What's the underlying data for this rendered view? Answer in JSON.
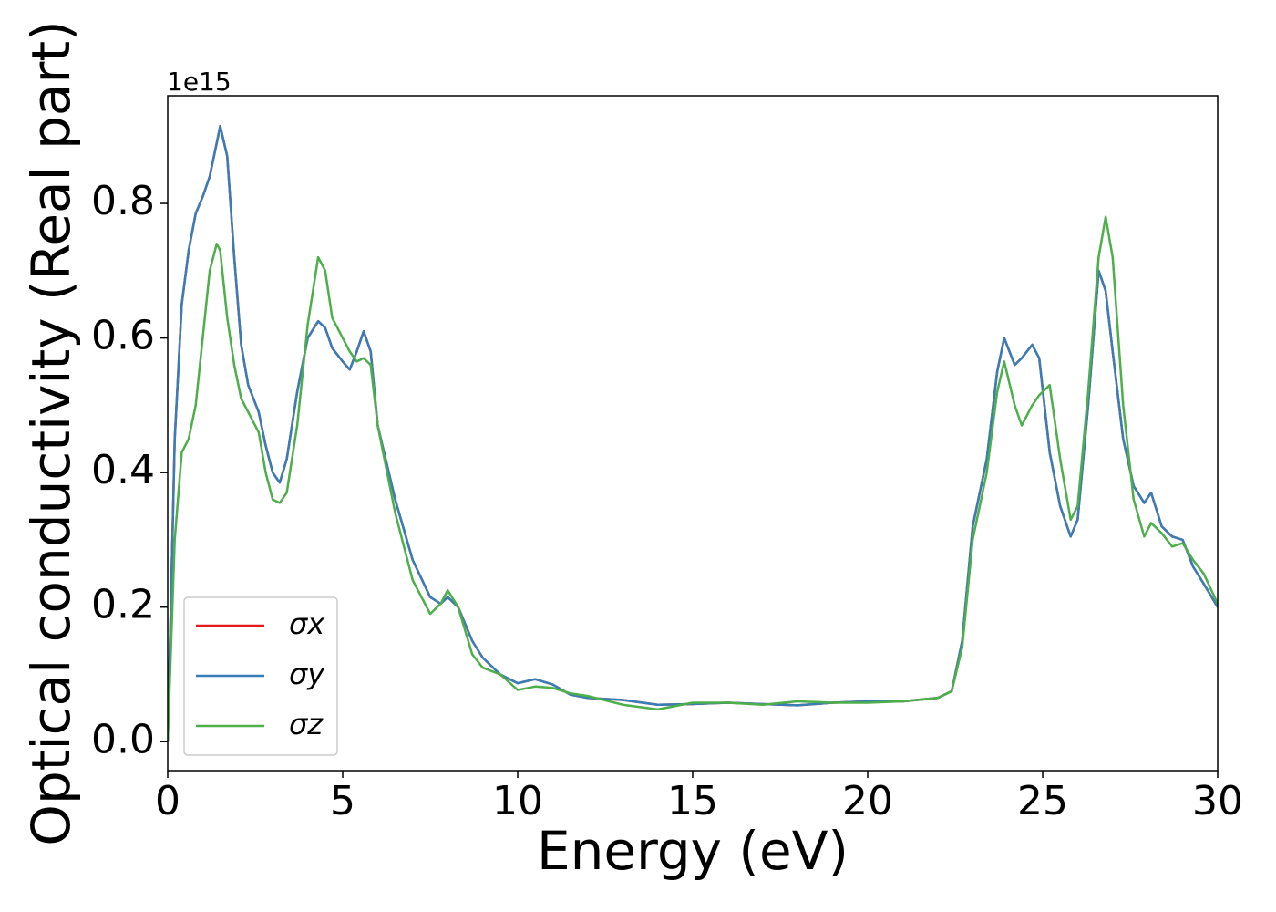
{
  "chart_data": {
    "type": "line",
    "xlabel": "Energy (eV)",
    "ylabel": "Optical conductivity (Real part)",
    "annotation": "1e15",
    "x": [
      0,
      0.2,
      0.4,
      0.6,
      0.8,
      1.0,
      1.2,
      1.4,
      1.5,
      1.7,
      1.9,
      2.1,
      2.3,
      2.6,
      2.8,
      3.0,
      3.2,
      3.4,
      3.7,
      4.0,
      4.3,
      4.5,
      4.7,
      5.0,
      5.2,
      5.4,
      5.6,
      5.8,
      6.0,
      6.5,
      7.0,
      7.5,
      7.8,
      8.0,
      8.3,
      8.7,
      9.0,
      9.5,
      10,
      10.5,
      11,
      11.5,
      12,
      13,
      14,
      15,
      16,
      17,
      18,
      19,
      20,
      21,
      22,
      22.4,
      22.7,
      23.0,
      23.4,
      23.7,
      23.9,
      24.2,
      24.4,
      24.7,
      24.9,
      25.2,
      25.5,
      25.8,
      26.0,
      26.3,
      26.6,
      26.8,
      27.0,
      27.3,
      27.6,
      27.9,
      28.1,
      28.4,
      28.7,
      29.0,
      29.3,
      29.6,
      30
    ],
    "series": [
      {
        "name": "σx",
        "color": "#e41a1c",
        "values": [
          0,
          0.45,
          0.65,
          0.73,
          0.785,
          0.81,
          0.84,
          0.89,
          0.915,
          0.87,
          0.72,
          0.59,
          0.53,
          0.49,
          0.44,
          0.4,
          0.385,
          0.42,
          0.52,
          0.6,
          0.625,
          0.615,
          0.585,
          0.565,
          0.553,
          0.58,
          0.61,
          0.58,
          0.47,
          0.36,
          0.27,
          0.215,
          0.205,
          0.215,
          0.2,
          0.15,
          0.125,
          0.1,
          0.087,
          0.093,
          0.085,
          0.07,
          0.065,
          0.062,
          0.055,
          0.056,
          0.058,
          0.056,
          0.054,
          0.058,
          0.06,
          0.06,
          0.065,
          0.075,
          0.15,
          0.32,
          0.42,
          0.55,
          0.6,
          0.56,
          0.57,
          0.59,
          0.57,
          0.43,
          0.35,
          0.305,
          0.33,
          0.5,
          0.7,
          0.67,
          0.58,
          0.45,
          0.38,
          0.355,
          0.37,
          0.32,
          0.305,
          0.3,
          0.26,
          0.235,
          0.2
        ]
      },
      {
        "name": "σy",
        "color": "#377eb8",
        "values": [
          0,
          0.45,
          0.65,
          0.73,
          0.785,
          0.81,
          0.84,
          0.89,
          0.915,
          0.87,
          0.72,
          0.59,
          0.53,
          0.49,
          0.44,
          0.4,
          0.385,
          0.42,
          0.52,
          0.6,
          0.625,
          0.615,
          0.585,
          0.565,
          0.553,
          0.58,
          0.61,
          0.58,
          0.47,
          0.36,
          0.27,
          0.215,
          0.205,
          0.215,
          0.2,
          0.15,
          0.125,
          0.1,
          0.087,
          0.093,
          0.085,
          0.07,
          0.065,
          0.062,
          0.055,
          0.056,
          0.058,
          0.056,
          0.054,
          0.058,
          0.06,
          0.06,
          0.065,
          0.075,
          0.15,
          0.32,
          0.42,
          0.55,
          0.6,
          0.56,
          0.57,
          0.59,
          0.57,
          0.43,
          0.35,
          0.305,
          0.33,
          0.5,
          0.7,
          0.67,
          0.58,
          0.45,
          0.38,
          0.355,
          0.37,
          0.32,
          0.305,
          0.3,
          0.26,
          0.235,
          0.2
        ]
      },
      {
        "name": "σz",
        "color": "#4daf4a",
        "values": [
          0,
          0.3,
          0.43,
          0.45,
          0.5,
          0.6,
          0.7,
          0.74,
          0.73,
          0.63,
          0.56,
          0.51,
          0.49,
          0.46,
          0.4,
          0.36,
          0.355,
          0.37,
          0.47,
          0.62,
          0.72,
          0.7,
          0.63,
          0.6,
          0.58,
          0.565,
          0.57,
          0.56,
          0.47,
          0.34,
          0.24,
          0.19,
          0.205,
          0.225,
          0.2,
          0.13,
          0.11,
          0.1,
          0.077,
          0.082,
          0.08,
          0.072,
          0.068,
          0.055,
          0.048,
          0.058,
          0.058,
          0.055,
          0.06,
          0.058,
          0.058,
          0.06,
          0.065,
          0.075,
          0.14,
          0.3,
          0.4,
          0.52,
          0.565,
          0.5,
          0.47,
          0.5,
          0.515,
          0.53,
          0.42,
          0.33,
          0.35,
          0.52,
          0.72,
          0.78,
          0.72,
          0.5,
          0.36,
          0.305,
          0.325,
          0.31,
          0.29,
          0.295,
          0.27,
          0.25,
          0.205
        ]
      }
    ],
    "xlim": [
      0,
      30
    ],
    "xticks": [
      0,
      5,
      10,
      15,
      20,
      25,
      30
    ],
    "ylim": [
      -0.043,
      0.96
    ],
    "yticks": [
      {
        "value": 0,
        "label": "0.0"
      },
      0.2,
      0.4,
      0.6,
      0.8
    ],
    "grid": false,
    "legend": "lower left"
  }
}
